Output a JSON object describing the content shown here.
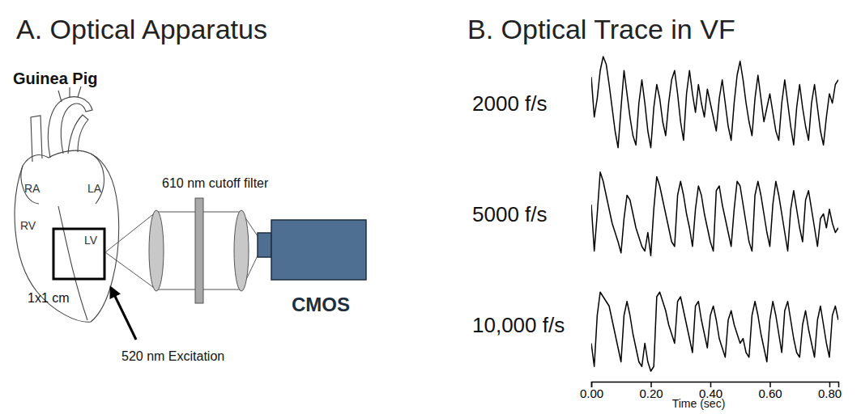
{
  "diagram": {
    "title": "A. Optical Apparatus",
    "subject": "Guinea Pig",
    "heart_labels": [
      "RA",
      "LA",
      "RV",
      "LV"
    ],
    "region_label": "1x1 cm",
    "excitation_label": "520 nm Excitation",
    "filter_label": "610 nm cutoff filter",
    "camera_label": "CMOS"
  },
  "chart_data": {
    "type": "line",
    "title": "B. Optical Trace in VF",
    "x_label": "Time (sec)",
    "x": [
      0,
      0.01,
      0.02,
      0.03,
      0.04,
      0.05,
      0.06,
      0.07,
      0.08,
      0.09,
      0.1,
      0.11,
      0.12,
      0.13,
      0.14,
      0.15,
      0.16,
      0.17,
      0.18,
      0.19,
      0.2,
      0.21,
      0.22,
      0.23,
      0.24,
      0.25,
      0.26,
      0.27,
      0.28,
      0.29,
      0.3,
      0.31,
      0.32,
      0.33,
      0.34,
      0.35,
      0.36,
      0.37,
      0.38,
      0.39,
      0.4,
      0.41,
      0.42,
      0.43,
      0.44,
      0.45,
      0.46,
      0.47,
      0.48,
      0.49,
      0.5,
      0.51,
      0.52,
      0.53,
      0.54,
      0.55,
      0.56,
      0.57,
      0.58,
      0.59,
      0.6,
      0.61,
      0.62,
      0.63,
      0.64,
      0.65,
      0.66,
      0.67,
      0.68,
      0.69,
      0.7,
      0.71,
      0.72,
      0.73,
      0.74,
      0.75,
      0.76,
      0.77,
      0.78,
      0.79,
      0.8,
      0.81,
      0.82,
      0.83
    ],
    "series": [
      {
        "name": "2000 f/s",
        "color": "#000000",
        "values": [
          0.78,
          0.35,
          0.55,
          0.85,
          1.0,
          0.92,
          0.7,
          0.45,
          0.2,
          0.02,
          0.45,
          0.85,
          0.6,
          0.35,
          0.15,
          0.05,
          0.5,
          0.75,
          0.5,
          0.2,
          0.02,
          0.45,
          0.7,
          0.55,
          0.3,
          0.15,
          0.5,
          0.75,
          0.85,
          0.6,
          0.3,
          0.1,
          0.6,
          0.85,
          0.6,
          0.4,
          0.7,
          0.5,
          0.35,
          0.65,
          0.5,
          0.35,
          0.2,
          0.55,
          0.75,
          0.5,
          0.25,
          0.1,
          0.5,
          0.8,
          0.95,
          0.75,
          0.5,
          0.3,
          0.15,
          0.55,
          0.8,
          0.55,
          0.3,
          0.45,
          0.6,
          0.4,
          0.2,
          0.1,
          0.5,
          0.75,
          0.5,
          0.25,
          0.05,
          0.45,
          0.7,
          0.45,
          0.25,
          0.1,
          0.5,
          0.7,
          0.45,
          0.2,
          0.05,
          0.35,
          0.6,
          0.5,
          0.7,
          0.75
        ]
      },
      {
        "name": "5000 f/s",
        "color": "#000000",
        "values": [
          0.6,
          0.1,
          0.5,
          0.95,
          0.85,
          0.7,
          0.55,
          0.4,
          0.3,
          0.2,
          0.08,
          0.45,
          0.7,
          0.65,
          0.5,
          0.35,
          0.25,
          0.15,
          0.1,
          0.3,
          0.05,
          0.55,
          0.9,
          0.8,
          0.65,
          0.5,
          0.35,
          0.2,
          0.15,
          0.7,
          0.85,
          0.7,
          0.5,
          0.35,
          0.15,
          0.55,
          0.8,
          0.7,
          0.5,
          0.35,
          0.2,
          0.1,
          0.75,
          0.8,
          0.6,
          0.45,
          0.3,
          0.15,
          0.55,
          0.85,
          0.8,
          0.6,
          0.4,
          0.2,
          0.1,
          0.7,
          0.85,
          0.7,
          0.5,
          0.3,
          0.15,
          0.6,
          0.85,
          0.7,
          0.5,
          0.3,
          0.1,
          0.55,
          0.75,
          0.55,
          0.35,
          0.2,
          0.65,
          0.75,
          0.55,
          0.35,
          0.15,
          0.45,
          0.5,
          0.35,
          0.55,
          0.4,
          0.3,
          0.35
        ]
      },
      {
        "name": "10,000 f/s",
        "color": "#000000",
        "values": [
          0.3,
          0.05,
          0.6,
          0.85,
          0.8,
          0.75,
          0.7,
          0.55,
          0.4,
          0.25,
          0.1,
          0.6,
          0.75,
          0.6,
          0.4,
          0.25,
          0.1,
          0.05,
          0.3,
          0.1,
          0.0,
          0.05,
          0.8,
          0.85,
          0.75,
          0.65,
          0.5,
          0.4,
          0.3,
          0.75,
          0.8,
          0.65,
          0.5,
          0.35,
          0.2,
          0.7,
          0.75,
          0.55,
          0.4,
          0.25,
          0.6,
          0.7,
          0.55,
          0.35,
          0.25,
          0.15,
          0.55,
          0.65,
          0.5,
          0.4,
          0.3,
          0.35,
          0.2,
          0.15,
          0.6,
          0.75,
          0.6,
          0.4,
          0.25,
          0.1,
          0.55,
          0.75,
          0.6,
          0.4,
          0.2,
          0.65,
          0.75,
          0.55,
          0.35,
          0.2,
          0.15,
          0.5,
          0.65,
          0.45,
          0.3,
          0.15,
          0.55,
          0.7,
          0.5,
          0.3,
          0.15,
          0.6,
          0.7,
          0.55
        ]
      }
    ],
    "xlim": [
      0,
      0.83
    ],
    "xticks": [
      {
        "value": 0,
        "label": "0.00"
      },
      {
        "value": 0.2,
        "label": "0.20"
      },
      {
        "value": 0.4,
        "label": "0.40"
      },
      {
        "value": 0.6,
        "label": "0.60"
      },
      {
        "value": 0.8,
        "label": "0.80"
      }
    ],
    "ylim": [
      0,
      1
    ],
    "tick_labels": "x"
  }
}
